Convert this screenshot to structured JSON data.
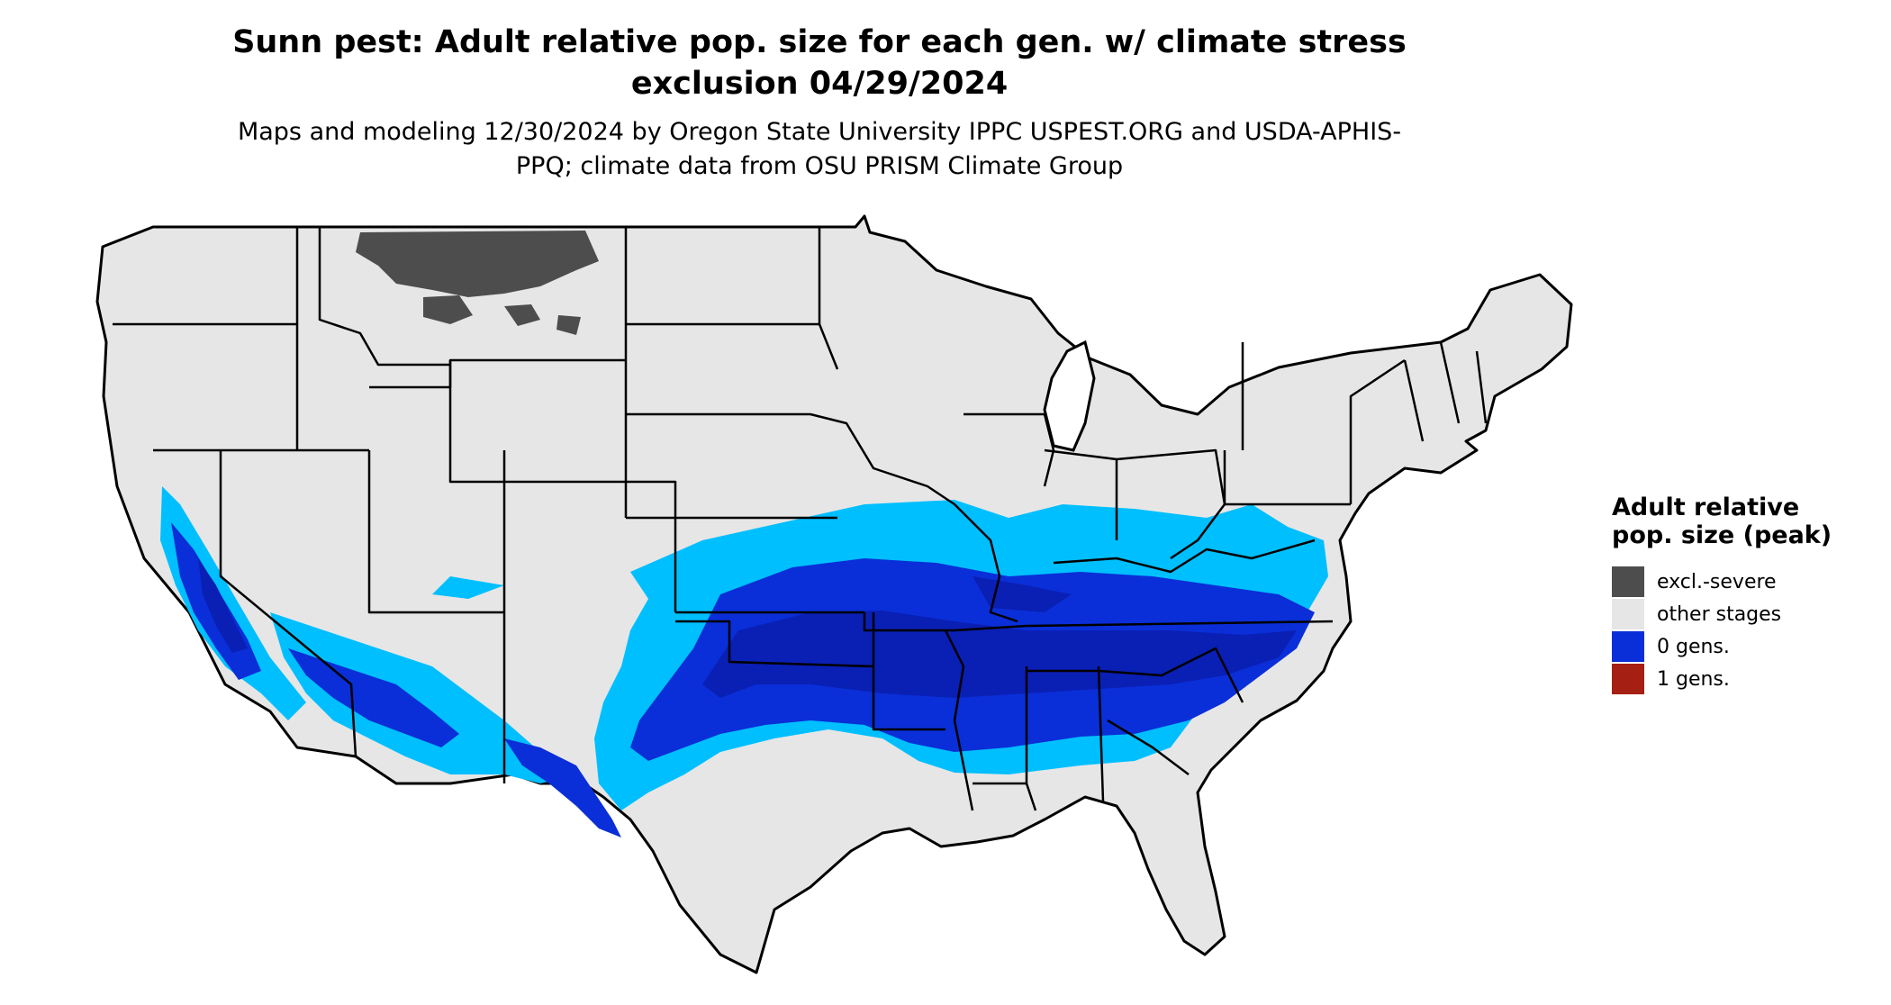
{
  "title": "Sunn pest: Adult relative pop. size for each gen. w/ climate stress exclusion 04/29/2024",
  "subtitle": "Maps and modeling 12/30/2024 by Oregon State University IPPC USPEST.ORG and USDA-APHIS-PPQ; climate data from OSU PRISM Climate Group",
  "map": {
    "region": "Contiguous United States",
    "background_color": "#e6e6e6",
    "border_color": "#000000"
  },
  "legend": {
    "title": "Adult relative pop. size (peak)",
    "items": [
      {
        "label": "excl.-severe",
        "color": "#4d4d4d"
      },
      {
        "label": "other stages",
        "color": "#e6e6e6"
      },
      {
        "label": "0 gens.",
        "color": "#0a2fd8"
      },
      {
        "label": "1 gens.",
        "color": "#a51f12"
      }
    ]
  },
  "zone_colors": {
    "light": "#00bfff",
    "medium": "#0a2fd8",
    "dark": "#0a1fb4"
  }
}
